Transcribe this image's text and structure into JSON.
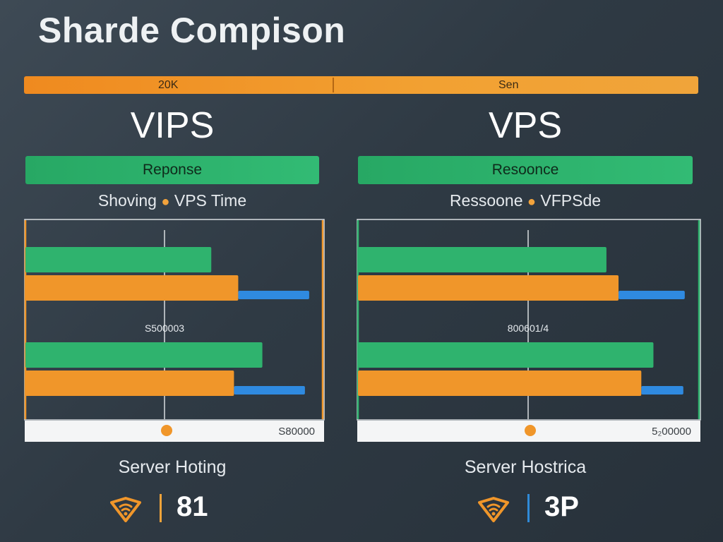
{
  "header": {
    "title": "Sharde Compison"
  },
  "top_bar": {
    "left_label": "20K",
    "right_label": "Sen"
  },
  "colors": {
    "green": "#2fb36e",
    "orange": "#f0962a",
    "blue": "#2f8ae0",
    "frame_left": "#f0962a",
    "frame_right": "#2fb36e"
  },
  "chart_data": [
    {
      "type": "bar",
      "title": "VIPS",
      "banner": "Reponse",
      "legend": [
        "Shoving",
        "VPS Time"
      ],
      "mid_label": "S500003",
      "axis_label": "S80000",
      "groups": [
        {
          "series": [
            {
              "name": "",
              "color": "green",
              "value": 262
            },
            {
              "name": "",
              "color": "orange",
              "value": 300
            },
            {
              "name": "",
              "color": "blue",
              "value": 400
            }
          ]
        },
        {
          "series": [
            {
              "name": "",
              "color": "green",
              "value": 334
            },
            {
              "name": "",
              "color": "orange",
              "value": 294
            },
            {
              "name": "",
              "color": "blue",
              "value": 394
            }
          ]
        }
      ],
      "xlim": [
        0,
        420
      ],
      "server_label": "Server Hoting",
      "footer_value": "81"
    },
    {
      "type": "bar",
      "title": "VPS",
      "banner": "Resoonce",
      "legend": [
        "Ressoone",
        "VFPSde"
      ],
      "mid_label": "800601/4",
      "axis_label": "5₂00000",
      "groups": [
        {
          "series": [
            {
              "name": "",
              "color": "green",
              "value": 349
            },
            {
              "name": "",
              "color": "orange",
              "value": 366
            },
            {
              "name": "",
              "color": "blue",
              "value": 459
            }
          ]
        },
        {
          "series": [
            {
              "name": "",
              "color": "green",
              "value": 415
            },
            {
              "name": "",
              "color": "orange",
              "value": 398
            },
            {
              "name": "",
              "color": "blue",
              "value": 457
            }
          ]
        }
      ],
      "xlim": [
        0,
        480
      ],
      "server_label": "Server Hostrica",
      "footer_value": "3P"
    }
  ]
}
